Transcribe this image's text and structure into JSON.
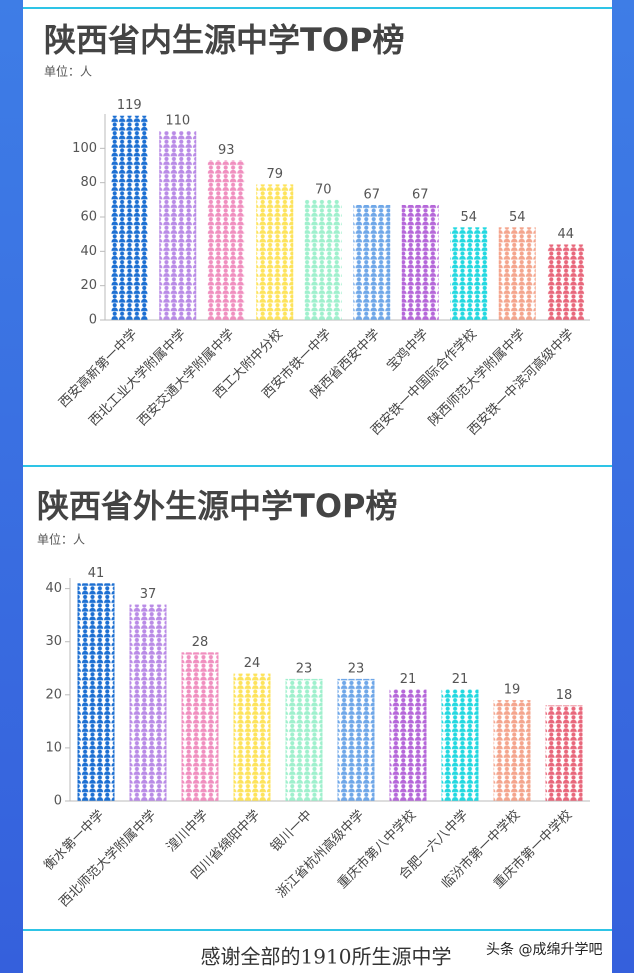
{
  "chart_data": [
    {
      "type": "pictorial-bar",
      "title": "陕西省内生源中学TOP榜",
      "subtitle": "单位：人",
      "categories": [
        "西安高新第一中学",
        "西北工业大学附属中学",
        "西安交通大学附属中学",
        "西工大附中分校",
        "西安市铁一中学",
        "陕西省西安中学",
        "宝鸡中学",
        "西安铁一中国际合作学校",
        "陕西师范大学附属中学",
        "西安铁一中滨河高级中学"
      ],
      "values": [
        119,
        110,
        93,
        79,
        70,
        67,
        67,
        54,
        54,
        44
      ],
      "colors": [
        "#1c6fd2",
        "#b98be6",
        "#f08fbf",
        "#fde35c",
        "#9ff0cd",
        "#6fa7e8",
        "#b567d9",
        "#23d8e0",
        "#f4a58d",
        "#e8677b"
      ],
      "ylim": [
        0,
        120
      ],
      "yticks": [
        0,
        20,
        40,
        60,
        80,
        100
      ]
    },
    {
      "type": "pictorial-bar",
      "title": "陕西省外生源中学TOP榜",
      "subtitle": "单位：人",
      "categories": [
        "衡水第一中学",
        "西北师范大学附属中学",
        "湟川中学",
        "四川省绵阳中学",
        "银川一中",
        "浙江省杭州高级中学",
        "重庆市第八中学校",
        "合肥一六八中学",
        "临汾市第一中学校",
        "重庆市第一中学校"
      ],
      "values": [
        41,
        37,
        28,
        24,
        23,
        23,
        21,
        21,
        19,
        18
      ],
      "colors": [
        "#1c6fd2",
        "#b98be6",
        "#f08fbf",
        "#fde35c",
        "#9ff0cd",
        "#6fa7e8",
        "#b567d9",
        "#23d8e0",
        "#f4a58d",
        "#e8677b"
      ],
      "ylim": [
        0,
        42
      ],
      "yticks": [
        0,
        10,
        20,
        30,
        40
      ]
    }
  ],
  "footer": {
    "text": "感谢全部的1910所生源中学",
    "watermark": "头条 @成绵升学吧"
  }
}
